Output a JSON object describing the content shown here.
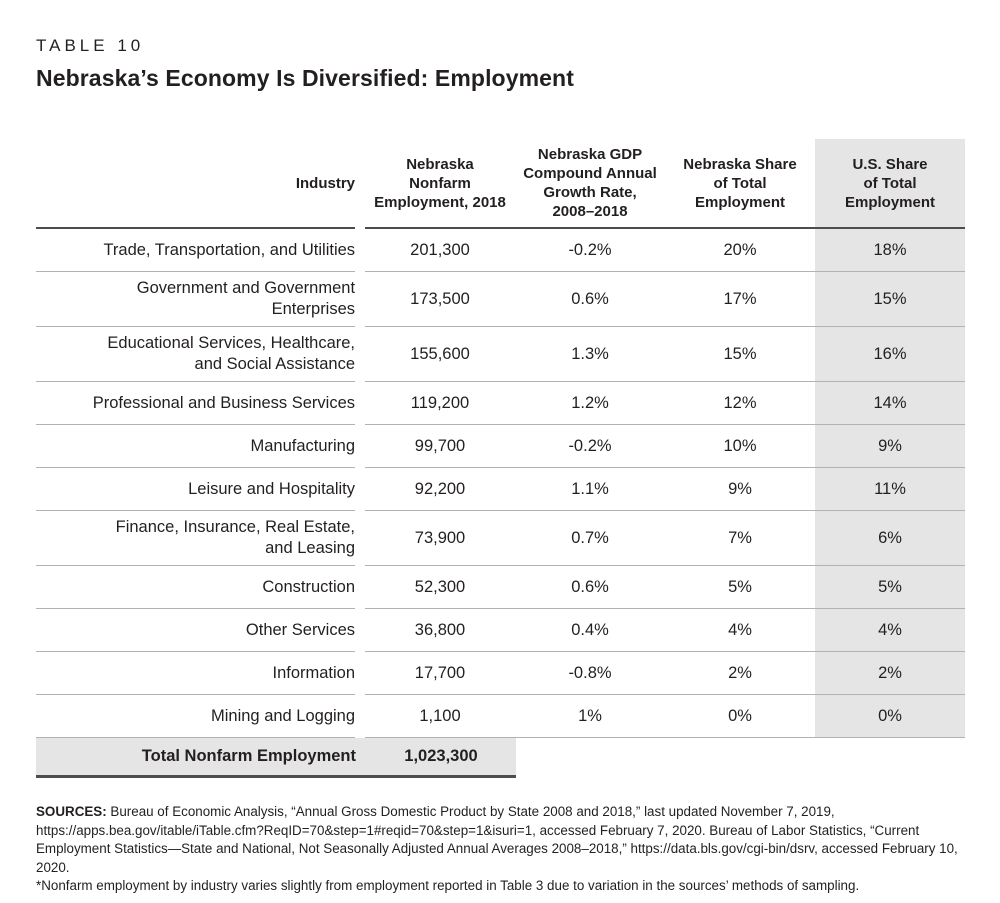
{
  "title": {
    "kicker": "TABLE 10",
    "heading": "Nebraska’s Economy Is Diversified: Employment"
  },
  "table": {
    "headers": {
      "industry": "Industry",
      "employment": "Nebraska\nNonfarm\nEmployment, 2018",
      "growth": "Nebraska GDP\nCompound Annual\nGrowth Rate,\n2008–2018",
      "ne_share": "Nebraska Share\nof Total\nEmployment",
      "us_share": "U.S. Share\nof Total\nEmployment"
    },
    "rows": [
      {
        "industry": "Trade, Transportation, and Utilities",
        "employment": "201,300",
        "growth": "-0.2%",
        "ne_share": "20%",
        "us_share": "18%"
      },
      {
        "industry": "Government and Government\nEnterprises",
        "employment": "173,500",
        "growth": "0.6%",
        "ne_share": "17%",
        "us_share": "15%"
      },
      {
        "industry": "Educational Services, Healthcare,\nand Social Assistance",
        "employment": "155,600",
        "growth": "1.3%",
        "ne_share": "15%",
        "us_share": "16%"
      },
      {
        "industry": "Professional and Business Services",
        "employment": "119,200",
        "growth": "1.2%",
        "ne_share": "12%",
        "us_share": "14%"
      },
      {
        "industry": "Manufacturing",
        "employment": "99,700",
        "growth": "-0.2%",
        "ne_share": "10%",
        "us_share": "9%"
      },
      {
        "industry": "Leisure and Hospitality",
        "employment": "92,200",
        "growth": "1.1%",
        "ne_share": "9%",
        "us_share": "11%"
      },
      {
        "industry": "Finance, Insurance, Real Estate,\nand Leasing",
        "employment": "73,900",
        "growth": "0.7%",
        "ne_share": "7%",
        "us_share": "6%"
      },
      {
        "industry": "Construction",
        "employment": "52,300",
        "growth": "0.6%",
        "ne_share": "5%",
        "us_share": "5%"
      },
      {
        "industry": "Other Services",
        "employment": "36,800",
        "growth": "0.4%",
        "ne_share": "4%",
        "us_share": "4%"
      },
      {
        "industry": "Information",
        "employment": "17,700",
        "growth": "-0.8%",
        "ne_share": "2%",
        "us_share": "2%"
      },
      {
        "industry": "Mining and Logging",
        "employment": "1,100",
        "growth": "1%",
        "ne_share": "0%",
        "us_share": "0%"
      }
    ],
    "total": {
      "label": "Total Nonfarm Employment",
      "value": "1,023,300"
    }
  },
  "footer": {
    "sources_label": "SOURCES:",
    "sources_text": " Bureau of Economic Analysis, “Annual Gross Domestic Product by State 2008 and 2018,” last updated November 7, 2019, https://apps.bea.gov/itable/iTable.cfm?ReqID=70&step=1#reqid=70&step=1&isuri=1, accessed February 7, 2020. Bureau of Labor Statistics, “Current Employment Statistics—State and National, Not Seasonally Adjusted Annual Averages 2008–2018,” https://data.bls.gov/cgi-bin/dsrv, accessed February 10, 2020.",
    "footnote": "*Nonfarm employment by industry varies slightly from employment reported in Table 3 due to variation in the sources’ methods of sampling."
  },
  "colors": {
    "text": "#231f20",
    "dark_rule": "#4d4d4d",
    "light_rule": "#b3b3b3",
    "shaded_fill": "#e5e5e5"
  }
}
